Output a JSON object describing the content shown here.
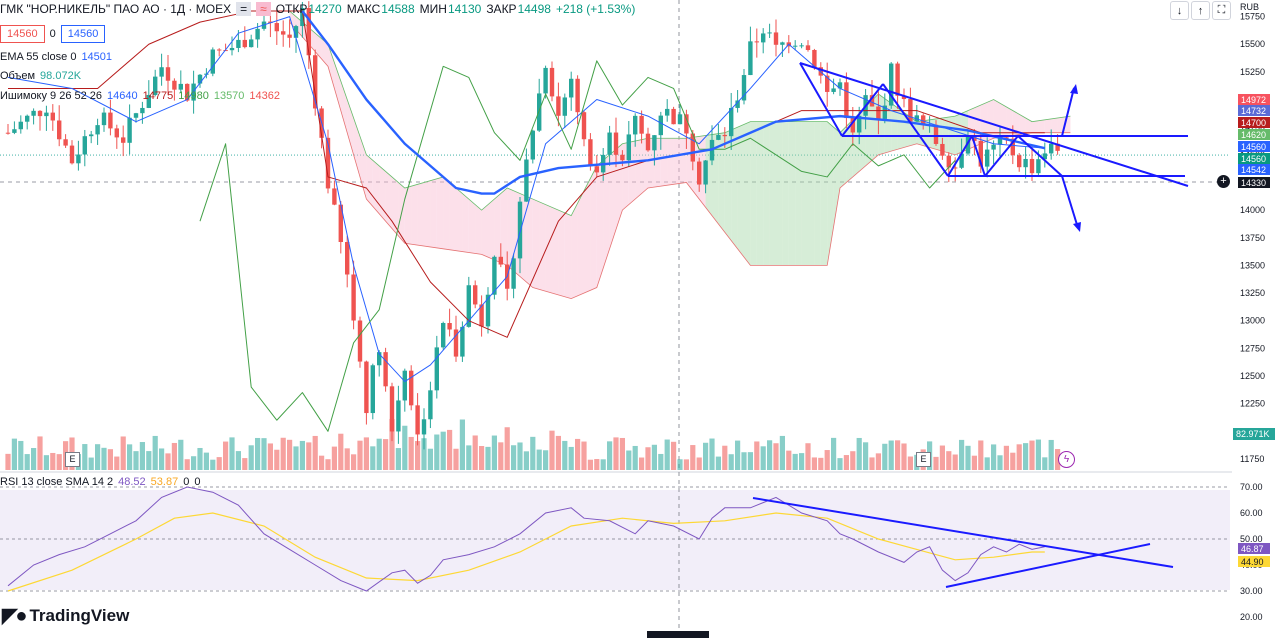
{
  "header": {
    "title": "ГМК \"НОР.НИКЕЛЬ\" ПАО АО · 1Д · MOEX",
    "open_label": "ОТКР",
    "open": "14270",
    "high_label": "МАКС",
    "high": "14588",
    "low_label": "МИН",
    "low": "14130",
    "close_label": "ЗАКР",
    "close": "14498",
    "change": "+218 (+1.53%)",
    "sell_price": "14560",
    "spread": "0",
    "buy_price": "14560",
    "currency": "RUB"
  },
  "legend": {
    "ema": {
      "label": "EMA 55 close 0",
      "value": "14501"
    },
    "volume": {
      "label": "Объем",
      "value": "98.072K"
    },
    "ichimoku": {
      "label": "Ишимоку 9 26 52 26",
      "v1": "14640",
      "v2": "14775",
      "v3": "14980",
      "v4": "13570",
      "v5": "14362"
    },
    "rsi": {
      "label": "RSI 13 close SMA 14 2",
      "v1": "48.52",
      "v2": "53.87",
      "v3": "0",
      "v4": "0"
    }
  },
  "price_axis": {
    "ticks": [
      "15750",
      "15500",
      "15250",
      "15000",
      "14750",
      "14500",
      "14250",
      "14000",
      "13750",
      "13500",
      "13250",
      "13000",
      "12750",
      "12500",
      "12250",
      "12000",
      "11750"
    ],
    "tags": [
      {
        "value": "14972",
        "color": "#f7525f"
      },
      {
        "value": "14732",
        "color": "#5b6bd6"
      },
      {
        "value": "14700",
        "color": "#b71c1c"
      },
      {
        "value": "14620",
        "color": "#66bb6a"
      },
      {
        "value": "14560",
        "color": "#2962ff"
      },
      {
        "value": "14560",
        "color": "#089981"
      },
      {
        "value": "14542",
        "color": "#2962ff"
      },
      {
        "value": "14330",
        "color": "#131722"
      }
    ],
    "volume_tag": "82.971K"
  },
  "rsi_axis": {
    "ticks": [
      "70.00",
      "60.00",
      "50.00",
      "40.00",
      "30.00",
      "20.00"
    ],
    "tag1": "46.87",
    "tag2": "44.90"
  },
  "branding": {
    "logo": "TradingView",
    "event_badge": "E"
  },
  "colors": {
    "up": "#26a69a",
    "down": "#ef5350",
    "ema": "#2962ff",
    "tenkan": "#2962ff",
    "kijun": "#b71c1c",
    "chikou": "#43a047",
    "cloud_up": "#a5d6a7",
    "cloud_down": "#f8bbd0",
    "rsi": "#7e57c2",
    "rsi_ma": "#fdd835",
    "drawing": "#1a1aff"
  },
  "chart_data": {
    "type": "candlestick",
    "title": "ГМК \"НОР.НИКЕЛЬ\" ПАО АО · 1Д · MOEX",
    "ylim": [
      11650,
      15900
    ],
    "last_close": 14498,
    "keyframes": [
      [
        0,
        14700
      ],
      [
        6,
        14950
      ],
      [
        10,
        14450
      ],
      [
        14,
        14850
      ],
      [
        18,
        14650
      ],
      [
        24,
        15300
      ],
      [
        28,
        15050
      ],
      [
        32,
        15400
      ],
      [
        36,
        15500
      ],
      [
        40,
        15700
      ],
      [
        44,
        15550
      ],
      [
        46,
        15800
      ],
      [
        48,
        15000
      ],
      [
        50,
        14250
      ],
      [
        53,
        13400
      ],
      [
        56,
        12250
      ],
      [
        58,
        12800
      ],
      [
        60,
        12000
      ],
      [
        62,
        12600
      ],
      [
        64,
        11950
      ],
      [
        66,
        12400
      ],
      [
        68,
        13000
      ],
      [
        70,
        12750
      ],
      [
        72,
        13300
      ],
      [
        74,
        13000
      ],
      [
        76,
        13650
      ],
      [
        78,
        13200
      ],
      [
        80,
        14100
      ],
      [
        82,
        14750
      ],
      [
        84,
        15350
      ],
      [
        86,
        14850
      ],
      [
        88,
        15200
      ],
      [
        90,
        14600
      ],
      [
        92,
        14350
      ],
      [
        94,
        14650
      ],
      [
        96,
        14500
      ],
      [
        98,
        14800
      ],
      [
        100,
        14550
      ],
      [
        102,
        14900
      ],
      [
        104,
        14850
      ],
      [
        106,
        14750
      ],
      [
        108,
        14300
      ],
      [
        110,
        14600
      ],
      [
        112,
        14700
      ],
      [
        114,
        15050
      ],
      [
        116,
        15450
      ],
      [
        118,
        15650
      ],
      [
        120,
        15450
      ],
      [
        122,
        15550
      ],
      [
        124,
        15550
      ],
      [
        126,
        15350
      ],
      [
        128,
        15050
      ],
      [
        130,
        15150
      ],
      [
        132,
        14650
      ],
      [
        134,
        15000
      ],
      [
        136,
        14800
      ],
      [
        138,
        15250
      ],
      [
        140,
        14950
      ],
      [
        142,
        14800
      ],
      [
        144,
        14700
      ],
      [
        146,
        14550
      ],
      [
        148,
        14400
      ],
      [
        150,
        14750
      ],
      [
        152,
        14450
      ],
      [
        154,
        14550
      ],
      [
        156,
        14600
      ],
      [
        158,
        14450
      ],
      [
        160,
        14400
      ],
      [
        162,
        14550
      ]
    ],
    "volume_ylim": [
      0,
      350
    ],
    "ema55_keyframes": [
      [
        46,
        15800
      ],
      [
        50,
        15500
      ],
      [
        56,
        15000
      ],
      [
        62,
        14600
      ],
      [
        70,
        14200
      ],
      [
        74,
        14150
      ],
      [
        76,
        14150
      ],
      [
        80,
        14300
      ],
      [
        86,
        14380
      ],
      [
        100,
        14450
      ],
      [
        110,
        14550
      ],
      [
        120,
        14800
      ],
      [
        130,
        14850
      ],
      [
        140,
        14800
      ],
      [
        150,
        14720
      ],
      [
        162,
        14560
      ]
    ],
    "tenkan_keyframes": [
      [
        0,
        15200
      ],
      [
        10,
        15100
      ],
      [
        20,
        14800
      ],
      [
        28,
        15000
      ],
      [
        36,
        15600
      ],
      [
        44,
        15750
      ],
      [
        50,
        14600
      ],
      [
        54,
        13500
      ],
      [
        58,
        12700
      ],
      [
        62,
        12450
      ],
      [
        66,
        12600
      ],
      [
        72,
        13000
      ],
      [
        78,
        13400
      ],
      [
        84,
        14600
      ],
      [
        92,
        15000
      ],
      [
        100,
        14850
      ],
      [
        108,
        14600
      ],
      [
        116,
        15100
      ],
      [
        122,
        15500
      ],
      [
        130,
        15100
      ],
      [
        138,
        14900
      ],
      [
        146,
        14750
      ],
      [
        154,
        14600
      ],
      [
        162,
        14560
      ]
    ],
    "kijun_keyframes": [
      [
        0,
        15100
      ],
      [
        14,
        15100
      ],
      [
        22,
        15500
      ],
      [
        30,
        15700
      ],
      [
        38,
        15800
      ],
      [
        46,
        15800
      ],
      [
        50,
        14300
      ],
      [
        56,
        14200
      ],
      [
        60,
        13900
      ],
      [
        66,
        13350
      ],
      [
        72,
        13000
      ],
      [
        78,
        12850
      ],
      [
        86,
        13900
      ],
      [
        92,
        14300
      ],
      [
        100,
        14450
      ],
      [
        110,
        14550
      ],
      [
        116,
        14700
      ],
      [
        124,
        14900
      ],
      [
        132,
        14900
      ],
      [
        142,
        14900
      ],
      [
        152,
        14700
      ],
      [
        162,
        14700
      ]
    ],
    "chikou_keyframes": [
      [
        30,
        13900
      ],
      [
        34,
        14600
      ],
      [
        38,
        12400
      ],
      [
        42,
        12100
      ],
      [
        46,
        12350
      ],
      [
        50,
        12000
      ],
      [
        54,
        12800
      ],
      [
        58,
        13100
      ],
      [
        62,
        14100
      ],
      [
        68,
        15300
      ],
      [
        72,
        15200
      ],
      [
        76,
        14700
      ],
      [
        80,
        14450
      ],
      [
        84,
        15050
      ],
      [
        88,
        14550
      ],
      [
        92,
        15350
      ],
      [
        96,
        14950
      ],
      [
        100,
        15200
      ],
      [
        104,
        15100
      ],
      [
        108,
        14550
      ],
      [
        112,
        14550
      ],
      [
        116,
        14650
      ],
      [
        120,
        14500
      ],
      [
        124,
        14350
      ],
      [
        128,
        14300
      ],
      [
        132,
        14600
      ],
      [
        136,
        14400
      ],
      [
        140,
        14500
      ],
      [
        144,
        14200
      ],
      [
        148,
        14450
      ]
    ],
    "cloud_keyframes": [
      [
        44,
        15800,
        15700
      ],
      [
        50,
        15500,
        15300
      ],
      [
        56,
        14500,
        14100
      ],
      [
        62,
        14200,
        13700
      ],
      [
        68,
        14300,
        13650
      ],
      [
        74,
        14000,
        13600
      ],
      [
        78,
        14200,
        13500
      ],
      [
        82,
        14100,
        13300
      ],
      [
        88,
        13950,
        13200
      ],
      [
        92,
        14400,
        13300
      ],
      [
        96,
        14600,
        14000
      ],
      [
        100,
        14650,
        14200
      ],
      [
        106,
        14650,
        14250
      ],
      [
        112,
        14700,
        13800
      ],
      [
        116,
        14800,
        13500
      ],
      [
        122,
        14800,
        13500
      ],
      [
        128,
        14800,
        13500
      ],
      [
        130,
        14700,
        14200
      ],
      [
        136,
        15050,
        14500
      ],
      [
        142,
        14800,
        14600
      ],
      [
        148,
        14850,
        14500
      ],
      [
        154,
        15000,
        14650
      ],
      [
        160,
        14800,
        14700
      ],
      [
        166,
        14850,
        14700
      ]
    ],
    "rsi_ylim": [
      15,
      75
    ],
    "rsi_keyframes": [
      [
        0,
        32
      ],
      [
        4,
        40
      ],
      [
        8,
        44
      ],
      [
        12,
        47
      ],
      [
        16,
        52
      ],
      [
        20,
        57
      ],
      [
        24,
        66
      ],
      [
        28,
        70
      ],
      [
        32,
        68
      ],
      [
        36,
        63
      ],
      [
        40,
        52
      ],
      [
        44,
        46
      ],
      [
        48,
        40
      ],
      [
        52,
        34
      ],
      [
        56,
        30
      ],
      [
        60,
        37
      ],
      [
        62,
        38
      ],
      [
        64,
        33
      ],
      [
        66,
        36
      ],
      [
        68,
        42
      ],
      [
        72,
        44
      ],
      [
        76,
        47
      ],
      [
        80,
        52
      ],
      [
        84,
        60
      ],
      [
        88,
        62
      ],
      [
        90,
        58
      ],
      [
        94,
        57
      ],
      [
        98,
        52
      ],
      [
        100,
        57
      ],
      [
        104,
        55
      ],
      [
        108,
        50
      ],
      [
        110,
        58
      ],
      [
        112,
        62
      ],
      [
        116,
        62
      ],
      [
        118,
        64
      ],
      [
        120,
        66
      ],
      [
        124,
        60
      ],
      [
        128,
        57
      ],
      [
        130,
        52
      ],
      [
        132,
        50
      ],
      [
        136,
        45
      ],
      [
        140,
        41
      ],
      [
        142,
        45
      ],
      [
        144,
        47
      ],
      [
        146,
        38
      ],
      [
        148,
        34
      ],
      [
        150,
        37
      ],
      [
        152,
        44
      ],
      [
        154,
        47
      ],
      [
        156,
        45
      ],
      [
        158,
        48
      ],
      [
        160,
        46
      ],
      [
        162,
        47
      ]
    ],
    "rsi_ma_keyframes": [
      [
        0,
        30
      ],
      [
        10,
        38
      ],
      [
        20,
        50
      ],
      [
        26,
        58
      ],
      [
        32,
        60
      ],
      [
        40,
        55
      ],
      [
        48,
        43
      ],
      [
        56,
        35
      ],
      [
        64,
        34
      ],
      [
        72,
        38
      ],
      [
        80,
        45
      ],
      [
        88,
        55
      ],
      [
        96,
        58
      ],
      [
        104,
        56
      ],
      [
        112,
        57
      ],
      [
        120,
        60
      ],
      [
        128,
        58
      ],
      [
        136,
        50
      ],
      [
        142,
        46
      ],
      [
        148,
        42
      ],
      [
        154,
        43
      ],
      [
        160,
        45
      ],
      [
        162,
        45
      ]
    ]
  }
}
